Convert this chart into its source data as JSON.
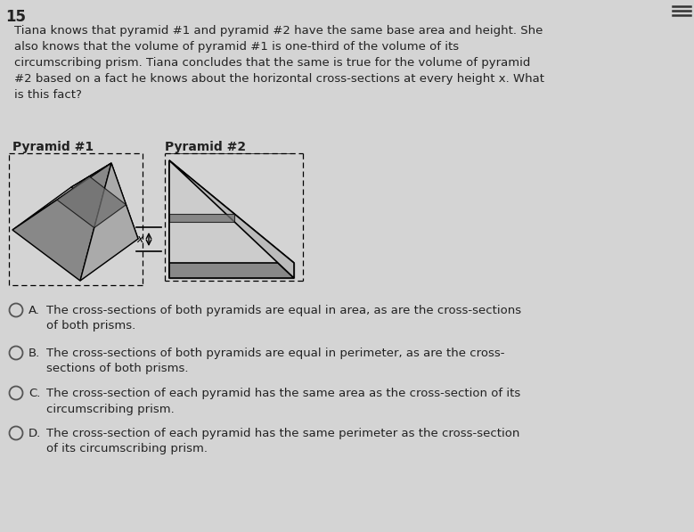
{
  "question_number": "15",
  "question_text": "Tiana knows that pyramid #1 and pyramid #2 have the same base area and height. She\nalso knows that the volume of pyramid #1 is one-third of the volume of its\ncircumscribing prism. Tiana concludes that the same is true for the volume of pyramid\n#2 based on a fact he knows about the horizontal cross-sections at every height x. What\nis this fact?",
  "label1": "Pyramid #1",
  "label2": "Pyramid #2",
  "answer_A": "The cross-sections of both pyramids are equal in area, as are the cross-sections\nof both prisms.",
  "answer_B": "The cross-sections of both pyramids are equal in perimeter, as are the cross-\nsections of both prisms.",
  "answer_C": "The cross-section of each pyramid has the same area as the cross-section of its\ncircumscribing prism.",
  "answer_D": "The cross-section of each pyramid has the same perimeter as the cross-section\nof its circumscribing prism.",
  "bg_color": "#d4d4d4",
  "text_color": "#222222",
  "font_size_question": 9.5,
  "font_size_answer": 9.5,
  "font_size_number": 12,
  "font_size_label": 10
}
